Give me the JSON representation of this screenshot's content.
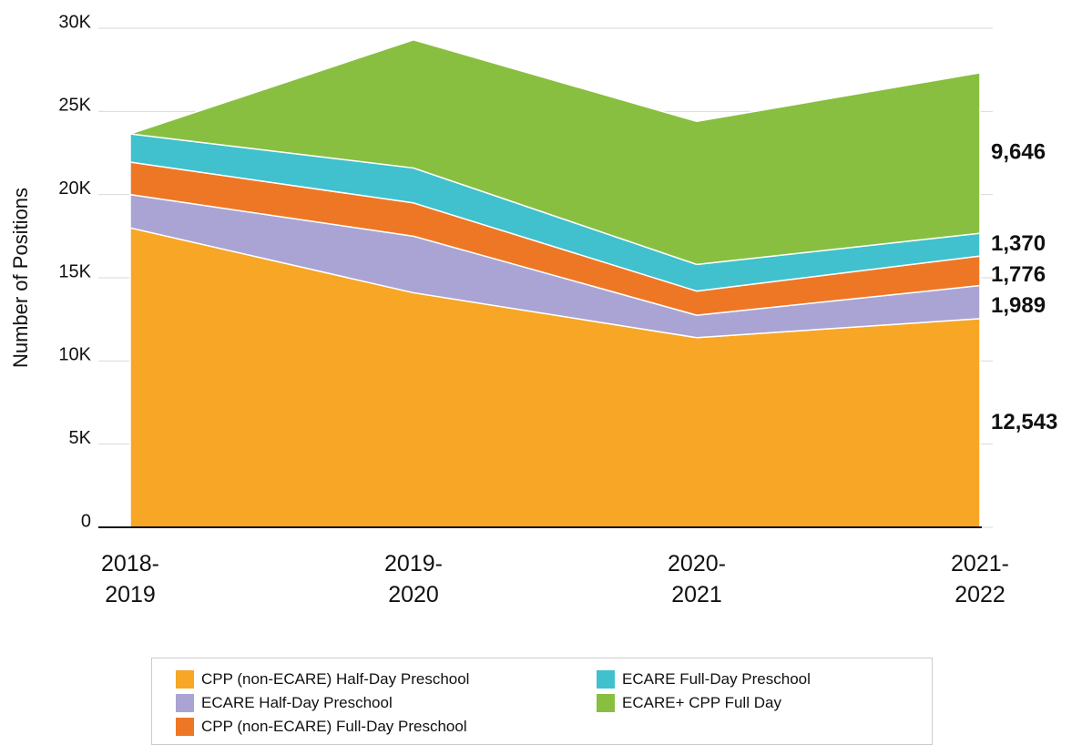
{
  "chart_data": {
    "type": "area",
    "y_label": "Number of Positions",
    "categories": [
      "2018-2019",
      "2019-2020",
      "2020-2021",
      "2021-2022"
    ],
    "series": [
      {
        "name": "CPP (non-ECARE) Half-Day Preschool",
        "color": "#f7a626",
        "values": [
          18000,
          14100,
          11400,
          12543
        ],
        "value_labels": [
          null,
          null,
          null,
          "12,543"
        ]
      },
      {
        "name": "ECARE Half-Day Preschool",
        "color": "#a9a4d4",
        "values": [
          2000,
          3400,
          1350,
          1989
        ],
        "value_labels": [
          null,
          null,
          null,
          "1,989"
        ]
      },
      {
        "name": "CPP (non-ECARE) Full-Day Preschool",
        "color": "#ee7725",
        "values": [
          1950,
          2000,
          1450,
          1776
        ],
        "value_labels": [
          null,
          null,
          null,
          "1,776"
        ]
      },
      {
        "name": "ECARE Full-Day Preschool",
        "color": "#40c1cd",
        "values": [
          1700,
          2100,
          1600,
          1370
        ],
        "value_labels": [
          null,
          null,
          null,
          "1,370"
        ]
      },
      {
        "name": "ECARE+ CPP Full Day",
        "color": "#88bf40",
        "values": [
          0,
          7700,
          8600,
          9646
        ],
        "value_labels": [
          null,
          null,
          null,
          "9,646"
        ]
      }
    ],
    "stacked": true,
    "ylim": [
      0,
      30000
    ],
    "yticks": [
      0,
      {
        "value": 5000,
        "label": "5K"
      },
      {
        "value": 10000,
        "label": "10K"
      },
      {
        "value": 15000,
        "label": "15K"
      },
      {
        "value": 20000,
        "label": "20K"
      },
      {
        "value": 25000,
        "label": "25K"
      },
      {
        "value": 30000,
        "label": "30K"
      }
    ],
    "grid": true
  }
}
